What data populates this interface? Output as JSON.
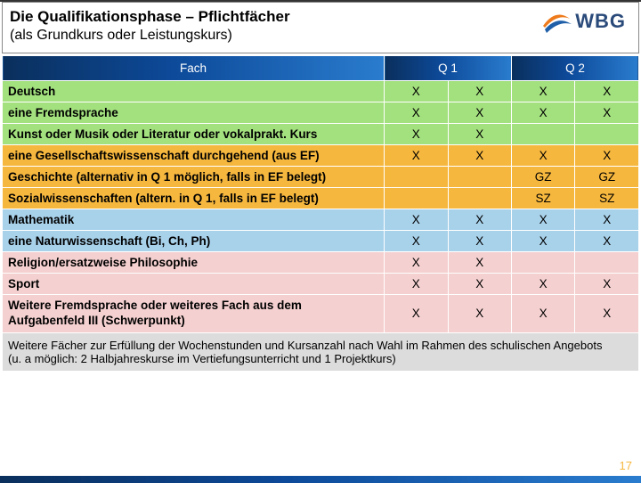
{
  "header": {
    "title": "Die Qualifikationsphase – Pflichtfächer",
    "subtitle": "(als Grundkurs oder Leistungskurs)",
    "logo_text": "WBG"
  },
  "table": {
    "head": {
      "fach": "Fach",
      "q1": "Q 1",
      "q2": "Q 2"
    },
    "rows": [
      {
        "cls": "row-green",
        "subject": "Deutsch",
        "c": [
          "X",
          "X",
          "X",
          "X"
        ]
      },
      {
        "cls": "row-green",
        "subject": "eine  Fremdsprache",
        "c": [
          "X",
          "X",
          "X",
          "X"
        ]
      },
      {
        "cls": "row-green",
        "subject": "Kunst oder Musik oder Literatur oder vokalprakt. Kurs",
        "c": [
          "X",
          "X",
          "",
          ""
        ]
      },
      {
        "cls": "row-orange",
        "subject": "eine Gesellschaftswissenschaft durchgehend (aus EF)",
        "c": [
          "X",
          "X",
          "X",
          "X"
        ]
      },
      {
        "cls": "row-orange",
        "subject": "Geschichte (alternativ in Q 1 möglich, falls in EF belegt)",
        "c": [
          "",
          "",
          "GZ",
          "GZ"
        ]
      },
      {
        "cls": "row-orange",
        "subject": "Sozialwissenschaften (altern. in Q 1, falls in EF belegt)",
        "c": [
          "",
          "",
          "SZ",
          "SZ"
        ]
      },
      {
        "cls": "row-blue",
        "subject": "Mathematik",
        "c": [
          "X",
          "X",
          "X",
          "X"
        ]
      },
      {
        "cls": "row-blue",
        "subject": "eine Naturwissenschaft (Bi, Ch, Ph)",
        "c": [
          "X",
          "X",
          "X",
          "X"
        ]
      },
      {
        "cls": "row-pink",
        "subject": "Religion/ersatzweise Philosophie",
        "c": [
          "X",
          "X",
          "",
          ""
        ]
      },
      {
        "cls": "row-pink",
        "subject": "Sport",
        "c": [
          "X",
          "X",
          "X",
          "X"
        ]
      },
      {
        "cls": "row-pink",
        "subject": "Weitere Fremdsprache oder weiteres Fach aus dem Aufgabenfeld III (Schwerpunkt)",
        "c": [
          "X",
          "X",
          "X",
          "X"
        ],
        "multi": true
      }
    ],
    "footer": "Weitere Fächer zur Erfüllung der Wochenstunden und Kursanzahl nach Wahl im Rahmen des schulischen Angebots\n(u. a möglich: 2 Halbjahreskurse im Vertiefungsunterricht und 1 Projektkurs)"
  },
  "page": "17",
  "colors": {
    "green": "#a3e07e",
    "orange": "#f6b73e",
    "blue": "#a8d1ea",
    "pink": "#f5d0d0",
    "gray": "#dcdcdc",
    "grad_start": "#0a2f5c",
    "grad_end": "#2a7cce",
    "logo_orange": "#ee7b1c",
    "logo_navy": "#2a4a7a"
  }
}
